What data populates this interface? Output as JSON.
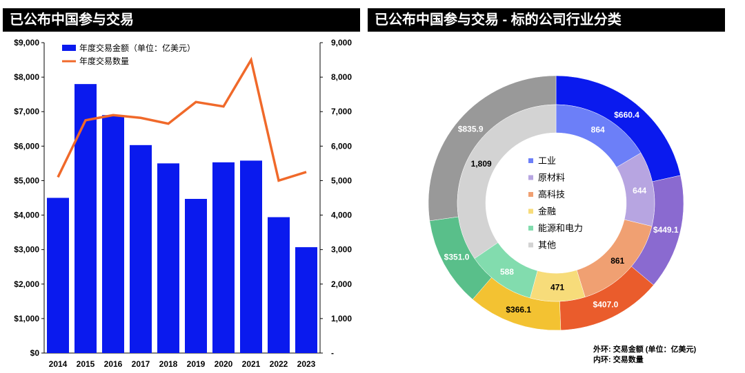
{
  "left_title": "已公布中国参与交易",
  "right_title": "已公布中国参与交易 - 标的公司行业分类",
  "chart_data": [
    {
      "type": "bar",
      "title": "已公布中国参与交易",
      "categories": [
        "2014",
        "2015",
        "2016",
        "2017",
        "2018",
        "2019",
        "2020",
        "2021",
        "2022",
        "2023"
      ],
      "series": [
        {
          "name": "年度交易金额（单位：亿美元）",
          "type": "bar",
          "axis": "left",
          "color": "#0a1aee",
          "values": [
            4500,
            7800,
            6900,
            6030,
            5500,
            4470,
            5530,
            5580,
            3940,
            3070
          ]
        },
        {
          "name": "年度交易数量",
          "type": "line",
          "axis": "right",
          "color": "#f0692a",
          "values": [
            5100,
            6750,
            6900,
            6820,
            6650,
            7280,
            7150,
            8500,
            5000,
            5250
          ]
        }
      ],
      "ylim_left": [
        0,
        9000
      ],
      "ylim_right": [
        0,
        9000
      ],
      "left_ticks": [
        "$0",
        "$1,000",
        "$2,000",
        "$3,000",
        "$4,000",
        "$5,000",
        "$6,000",
        "$7,000",
        "$8,000",
        "$9,000"
      ],
      "right_ticks": [
        "-",
        "1,000",
        "2,000",
        "3,000",
        "4,000",
        "5,000",
        "6,000",
        "7,000",
        "8,000",
        "9,000"
      ],
      "legend_position": "top-left"
    },
    {
      "type": "pie",
      "variant": "double-donut",
      "title": "已公布中国参与交易 - 标的公司行业分类",
      "legend_position": "center",
      "categories": [
        "工业",
        "原材料",
        "高科技",
        "金融",
        "能源和电力",
        "其他"
      ],
      "outer": {
        "label": "外环: 交易金额 (单位：亿美元)",
        "values": [
          660.4,
          449.1,
          407.0,
          366.1,
          351.0,
          835.9
        ],
        "labels": [
          "$660.4",
          "$449.1",
          "$407.0",
          "$366.1",
          "$351.0",
          "$835.9"
        ]
      },
      "inner": {
        "label": "内环: 交易数量",
        "values": [
          864,
          644,
          861,
          471,
          588,
          1809
        ],
        "labels": [
          "864",
          "644",
          "861",
          "471",
          "588",
          "1,809"
        ]
      },
      "outer_colors": [
        "#0a1aee",
        "#8a6ad0",
        "#ea5c2c",
        "#f3c232",
        "#59bf8a",
        "#999999"
      ],
      "inner_colors": [
        "#6c7ff8",
        "#b7a5e1",
        "#f0a072",
        "#f7dc7a",
        "#82dcae",
        "#d3d3d3"
      ]
    }
  ],
  "notes": {
    "outer": "外环: 交易金额 (单位：亿美元)",
    "inner": "内环: 交易数量"
  }
}
